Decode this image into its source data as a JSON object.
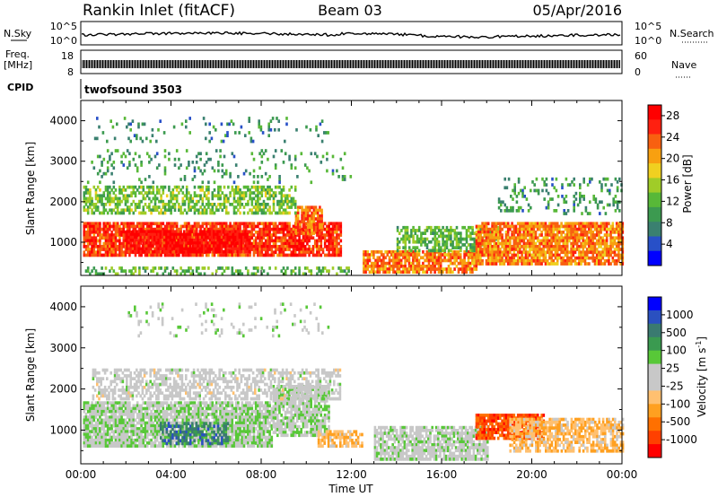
{
  "header": {
    "station": "Rankin Inlet (fitACF)",
    "beam": "Beam 03",
    "date": "05/Apr/2016"
  },
  "strip_labels": {
    "nsky": "N.Sky",
    "nsky_top": "10^5",
    "nsky_bottom": "10^0",
    "nsearch": "N.Search",
    "nsearch_top": "10^5",
    "nsearch_bottom": "10^0",
    "freq": "Freq.",
    "freq_unit": "[MHz]",
    "freq_top": "18",
    "freq_bottom": "8",
    "nave": "Nave",
    "nave_top": "60",
    "nave_bottom": "0",
    "cpid": "CPID",
    "cpid_value": "twofsound 3503"
  },
  "x_axis": {
    "label": "Time UT",
    "ticks": [
      "00:00",
      "04:00",
      "08:00",
      "12:00",
      "16:00",
      "20:00",
      "00:00"
    ]
  },
  "chart_data": [
    {
      "type": "heatmap",
      "panel": "power",
      "xlabel": "Time UT",
      "ylabel": "Slant Range [km]",
      "x_range_hours": [
        0,
        24
      ],
      "ylim": [
        180,
        4500
      ],
      "y_ticks": [
        1000,
        2000,
        3000,
        4000
      ],
      "colorbar": {
        "label": "Power [dB]",
        "ticks": [
          4,
          8,
          12,
          16,
          20,
          24,
          28
        ],
        "range": [
          0,
          30
        ],
        "colors": [
          "#0000ff",
          "#2850c8",
          "#3a8070",
          "#3c9a50",
          "#58b838",
          "#a0cc28",
          "#f0d020",
          "#f8a010",
          "#f86010",
          "#ff2010",
          "#ff0000"
        ]
      },
      "regions": [
        {
          "t": [
            0.1,
            11.5
          ],
          "r": [
            700,
            1500
          ],
          "value": 25,
          "density": 0.85
        },
        {
          "t": [
            2.0,
            7.5
          ],
          "r": [
            800,
            1300
          ],
          "value": 28,
          "density": 0.9
        },
        {
          "t": [
            9.5,
            10.7
          ],
          "r": [
            1200,
            1900
          ],
          "value": 23,
          "density": 0.8
        },
        {
          "t": [
            0.1,
            9.5
          ],
          "r": [
            1700,
            2400
          ],
          "value": 13,
          "density": 0.55
        },
        {
          "t": [
            0.1,
            12.0
          ],
          "r": [
            2500,
            3300
          ],
          "value": 9,
          "density": 0.12
        },
        {
          "t": [
            0.5,
            11.0
          ],
          "r": [
            3500,
            4100
          ],
          "value": 8,
          "density": 0.08
        },
        {
          "t": [
            12.5,
            17.5
          ],
          "r": [
            250,
            800
          ],
          "value": 22,
          "density": 0.8
        },
        {
          "t": [
            14.0,
            18.5
          ],
          "r": [
            800,
            1400
          ],
          "value": 12,
          "density": 0.55
        },
        {
          "t": [
            17.5,
            24.0
          ],
          "r": [
            500,
            1500
          ],
          "value": 22,
          "density": 0.85
        },
        {
          "t": [
            18.5,
            24.0
          ],
          "r": [
            1700,
            2600
          ],
          "value": 9,
          "density": 0.2
        },
        {
          "t": [
            0.1,
            12.0
          ],
          "r": [
            200,
            400
          ],
          "value": 12,
          "density": 0.35
        }
      ]
    },
    {
      "type": "heatmap",
      "panel": "velocity",
      "xlabel": "Time UT",
      "ylabel": "Slant Range [km]",
      "x_range_hours": [
        0,
        24
      ],
      "ylim": [
        180,
        4500
      ],
      "y_ticks": [
        1000,
        2000,
        3000,
        4000
      ],
      "colorbar": {
        "label": "Velocity [m s^-1]",
        "ticks": [
          "1000",
          "500",
          "100",
          "25",
          "-25",
          "-100",
          "-500",
          "-1000"
        ],
        "range": [
          -1000,
          1000
        ],
        "colors": [
          "#ff0000",
          "#ff4000",
          "#ff7000",
          "#ffa020",
          "#ffc070",
          "#c8c8c8",
          "#c8c8c8",
          "#58c838",
          "#3a9a50",
          "#3a7a70",
          "#2a50c0",
          "#0000ff"
        ]
      },
      "regions": [
        {
          "t": [
            0.1,
            8.5
          ],
          "r": [
            600,
            1700
          ],
          "value": 120,
          "density": 0.85
        },
        {
          "t": [
            3.5,
            6.5
          ],
          "r": [
            700,
            1200
          ],
          "value": 600,
          "density": 0.5
        },
        {
          "t": [
            8.5,
            11.0
          ],
          "r": [
            900,
            2100
          ],
          "value": 110,
          "density": 0.8
        },
        {
          "t": [
            0.5,
            11.5
          ],
          "r": [
            1800,
            2500
          ],
          "value": 0,
          "density": 0.55
        },
        {
          "t": [
            10.5,
            12.5
          ],
          "r": [
            600,
            1000
          ],
          "value": -300,
          "density": 0.6
        },
        {
          "t": [
            13.0,
            18.0
          ],
          "r": [
            300,
            1100
          ],
          "value": 70,
          "density": 0.8
        },
        {
          "t": [
            17.5,
            20.5
          ],
          "r": [
            800,
            1400
          ],
          "value": -700,
          "density": 0.85
        },
        {
          "t": [
            19.0,
            24.0
          ],
          "r": [
            500,
            1300
          ],
          "value": -300,
          "density": 0.7
        },
        {
          "t": [
            2.0,
            11.0
          ],
          "r": [
            3300,
            4100
          ],
          "value": 80,
          "density": 0.08
        }
      ]
    }
  ]
}
